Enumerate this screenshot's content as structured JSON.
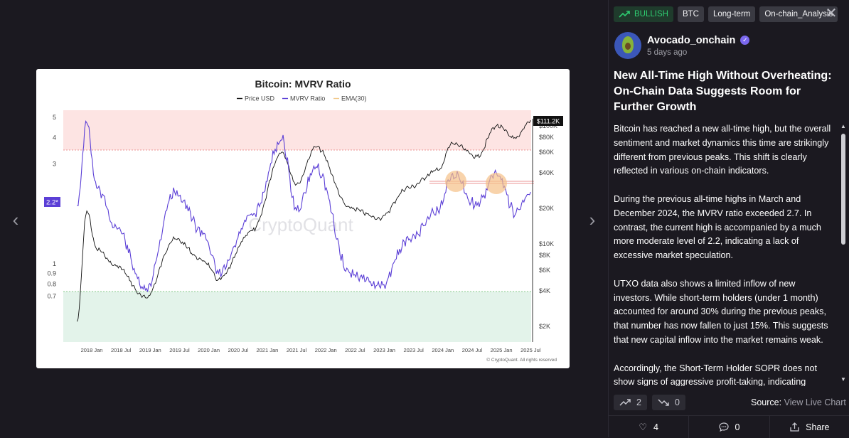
{
  "viewer": {
    "prev_arrow": "‹",
    "next_arrow": "›"
  },
  "chart_data": {
    "type": "line",
    "title": "Bitcoin: MVRV Ratio",
    "legend": [
      "Price USD",
      "MVRV Ratio",
      "EMA(30)"
    ],
    "x_ticks": [
      "2018 Jan",
      "2018 Jul",
      "2019 Jan",
      "2019 Jul",
      "2020 Jan",
      "2020 Jul",
      "2021 Jan",
      "2021 Jul",
      "2022 Jan",
      "2022 Jul",
      "2023 Jan",
      "2023 Jul",
      "2024 Jan",
      "2024 Jul",
      "2025 Jan",
      "2025 Jul"
    ],
    "y_left_ticks": [
      5,
      4,
      3,
      2,
      1,
      0.9,
      0.8,
      0.7
    ],
    "y_left_scale": "log",
    "y_right_ticks": [
      "$100K",
      "$80K",
      "$60K",
      "$40K",
      "$20K",
      "$10K",
      "$8K",
      "$6K",
      "$4K",
      "$2K"
    ],
    "y_right_scale": "log",
    "current_mvrv_label": "2.2*",
    "current_price_label": "$111.2K",
    "watermark": "CryptoQuant",
    "copyright": "© CryptoQuant. All rights reserved",
    "zones": {
      "overheated_above": 3.7,
      "undervalued_below": 1
    },
    "legend_placement": "top-center",
    "colors": {
      "price": "#111111",
      "mvrv": "#5b3fd6",
      "ema": "#f2c98a",
      "red_zone": "#fde4e3",
      "green_zone": "#e3f3ea",
      "highlight": "#f5c088"
    },
    "series": [
      {
        "name": "Price USD",
        "x": [
          "2017-10",
          "2017-12",
          "2018-02",
          "2018-06",
          "2018-12",
          "2019-06",
          "2019-12",
          "2020-03",
          "2020-10",
          "2021-04",
          "2021-07",
          "2021-11",
          "2022-06",
          "2022-12",
          "2023-06",
          "2023-12",
          "2024-03",
          "2024-08",
          "2024-12",
          "2025-04",
          "2025-07"
        ],
        "values": [
          2200,
          19000,
          9000,
          6500,
          3500,
          11000,
          7200,
          5000,
          13000,
          60000,
          32000,
          66000,
          20000,
          16500,
          30000,
          42000,
          71000,
          55000,
          100000,
          78000,
          111200
        ]
      },
      {
        "name": "MVRV Ratio",
        "x": [
          "2017-10",
          "2017-12",
          "2018-02",
          "2018-06",
          "2018-12",
          "2019-06",
          "2019-12",
          "2020-03",
          "2020-10",
          "2021-04",
          "2021-07",
          "2021-11",
          "2022-06",
          "2022-12",
          "2023-06",
          "2023-12",
          "2024-03",
          "2024-08",
          "2024-12",
          "2025-04",
          "2025-07"
        ],
        "values": [
          1.9,
          4.7,
          2.3,
          1.5,
          0.75,
          2.2,
          1.4,
          0.9,
          1.7,
          3.9,
          1.8,
          2.9,
          0.9,
          0.78,
          1.3,
          1.8,
          2.7,
          1.9,
          2.7,
          1.75,
          2.2
        ]
      }
    ]
  },
  "panel": {
    "tags": [
      "BULLISH",
      "BTC",
      "Long-term",
      "On-chain_Analysis"
    ],
    "close": "✕",
    "author": {
      "name": "Avocado_onchain",
      "time": "5 days ago"
    },
    "title": "New All-Time High Without Overheating: On-Chain Data Suggests Room for Further Growth",
    "paragraphs": [
      "Bitcoin has reached a new all-time high, but the overall sentiment and market dynamics this time are strikingly different from previous peaks. This shift is clearly reflected in various on-chain indicators.",
      "During the previous all-time highs in March and December 2024, the MVRV ratio exceeded 2.7. In contrast, the current high is accompanied by a much more moderate level of 2.2, indicating a lack of excessive market speculation.",
      "UTXO data also shows a limited inflow of new investors. While short-term holders (under 1 month) accounted for around 30% during the previous peaks, that number has now fallen to just 15%. This suggests that new capital inflow into the market remains weak.",
      "Accordingly, the Short-Term Holder SOPR does not show signs of aggressive profit-taking, indicating"
    ],
    "upvotes": "2",
    "downvotes": "0",
    "source_label": "Source:",
    "source_link": "View Live Chart",
    "likes": "4",
    "comments": "0",
    "share": "Share"
  }
}
